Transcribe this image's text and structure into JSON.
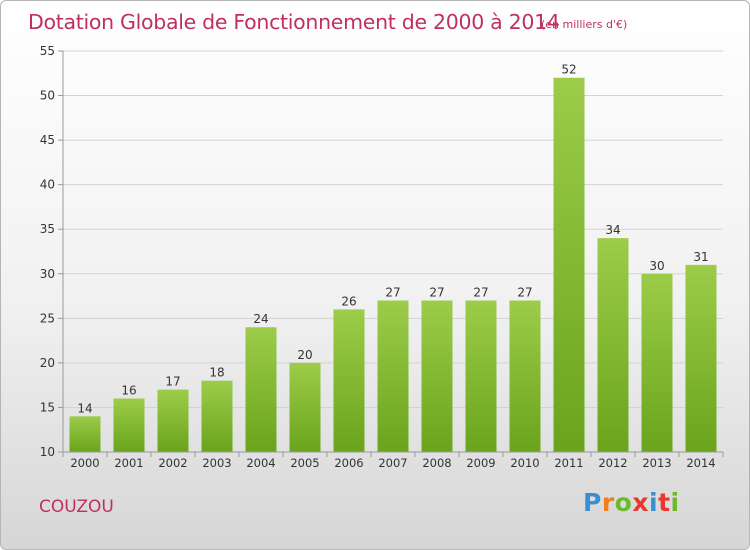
{
  "chart_data": {
    "type": "bar",
    "title": "Dotation Globale de Fonctionnement de 2000 à 2014",
    "subtitle": "(en milliers d'€)",
    "xlabel": "",
    "ylabel": "",
    "categories": [
      "2000",
      "2001",
      "2002",
      "2003",
      "2004",
      "2005",
      "2006",
      "2007",
      "2008",
      "2009",
      "2010",
      "2011",
      "2012",
      "2013",
      "2014"
    ],
    "values": [
      14,
      16,
      17,
      18,
      24,
      20,
      26,
      27,
      27,
      27,
      27,
      52,
      34,
      30,
      31
    ],
    "ylim": [
      10,
      55
    ],
    "yticks": [
      10,
      15,
      20,
      25,
      30,
      35,
      40,
      45,
      50,
      55
    ],
    "grid": true,
    "bar_color": "#8bc43c"
  },
  "footer": {
    "commune": "COUZOU",
    "logo_text": "Proxiti"
  },
  "colors": {
    "title": "#c0305e",
    "logo": [
      "#3a8fd0",
      "#f07e1c",
      "#6bbb2a",
      "#e8372c",
      "#3a8fd0",
      "#e8372c",
      "#6bbb2a"
    ]
  }
}
